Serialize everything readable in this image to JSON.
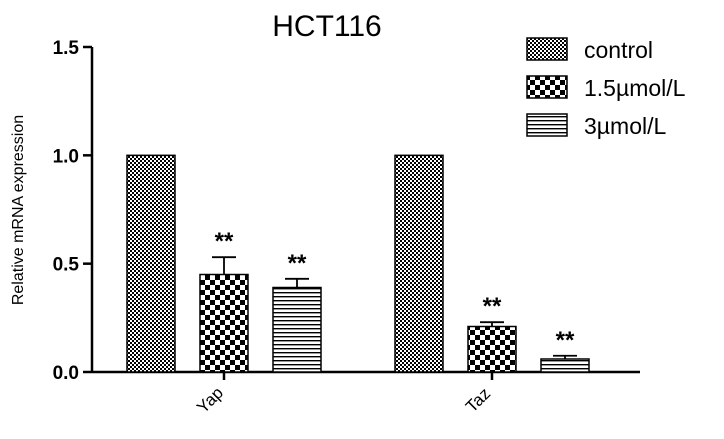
{
  "chart_data": {
    "type": "bar",
    "title": "HCT116",
    "ylabel": "Relative mRNA expression",
    "xlabel": "",
    "categories": [
      "Yap",
      "Taz"
    ],
    "ylim": [
      0,
      1.5
    ],
    "yticks": [
      "0.0",
      "0.5",
      "1.0",
      "1.5"
    ],
    "series": [
      {
        "name": "control",
        "values": [
          1.0,
          1.0
        ],
        "errors": [
          0,
          0
        ],
        "significance": [
          "",
          ""
        ],
        "pattern": "fine-checker"
      },
      {
        "name": "1.5µmol/L",
        "values": [
          0.45,
          0.21
        ],
        "errors": [
          0.08,
          0.02
        ],
        "significance": [
          "**",
          "**"
        ],
        "pattern": "coarse-checker"
      },
      {
        "name": "3µmol/L",
        "values": [
          0.39,
          0.06
        ],
        "errors": [
          0.04,
          0.015
        ],
        "significance": [
          "**",
          "**"
        ],
        "pattern": "horizontal-lines"
      }
    ],
    "legend": "top-right",
    "grid": false
  }
}
